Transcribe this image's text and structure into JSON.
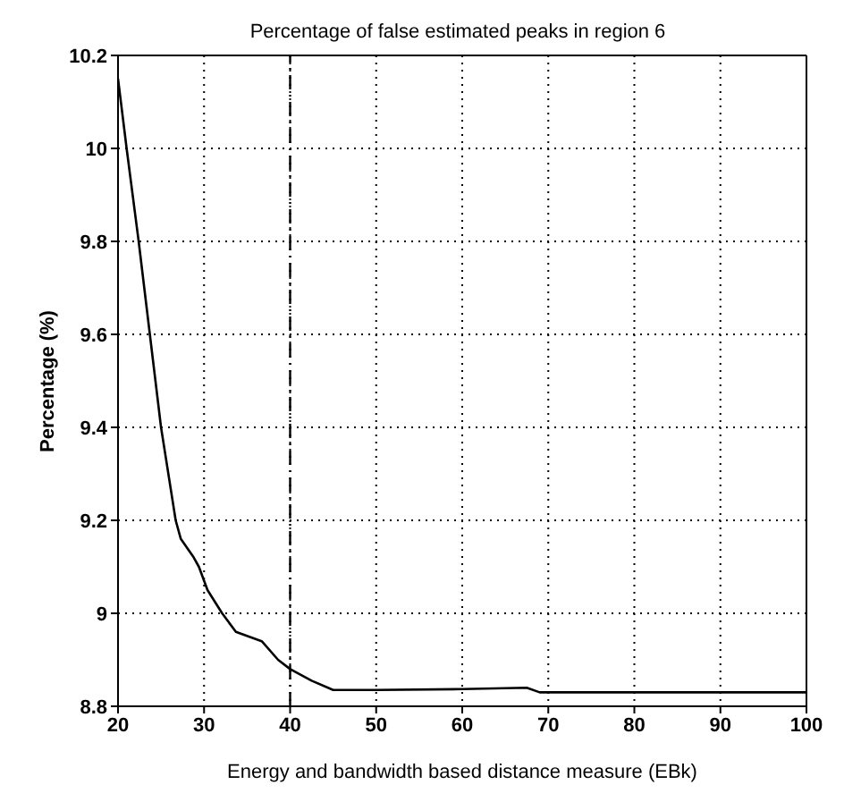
{
  "chart_data": {
    "type": "line",
    "title": "Percentage of false estimated peaks in region 6",
    "xlabel": "Energy and bandwidth based distance measure (EBk)",
    "ylabel": "Percentage (%)",
    "series": [
      {
        "color": "#000000",
        "x": [
          20,
          21,
          22.4,
          23.7,
          25,
          26.7,
          27.3,
          28.8,
          29.4,
          30.4,
          32.1,
          33.7,
          36.7,
          38.6,
          40,
          42.5,
          45,
          50,
          60,
          67.5,
          69,
          80,
          90,
          100
        ],
        "values": [
          10.15,
          10,
          9.8,
          9.6,
          9.4,
          9.2,
          9.16,
          9.12,
          9.1,
          9.05,
          9,
          8.96,
          8.94,
          8.9,
          8.88,
          8.855,
          8.835,
          8.835,
          8.837,
          8.84,
          8.83,
          8.83,
          8.83,
          8.83
        ]
      }
    ],
    "xlim": [
      20,
      100
    ],
    "xticks": [
      20,
      30,
      40,
      50,
      60,
      70,
      80,
      90,
      100
    ],
    "ylim": [
      8.8,
      10.2
    ],
    "yticks": [
      8.8,
      9,
      9.2,
      9.4,
      9.6,
      9.8,
      10,
      10.2
    ],
    "ref_lines": [
      {
        "axis": "x",
        "value": 40,
        "color": "#000000",
        "line_style": "dashdot"
      }
    ],
    "grid": true,
    "marker": "none",
    "line_style": "solid",
    "legend": false
  }
}
